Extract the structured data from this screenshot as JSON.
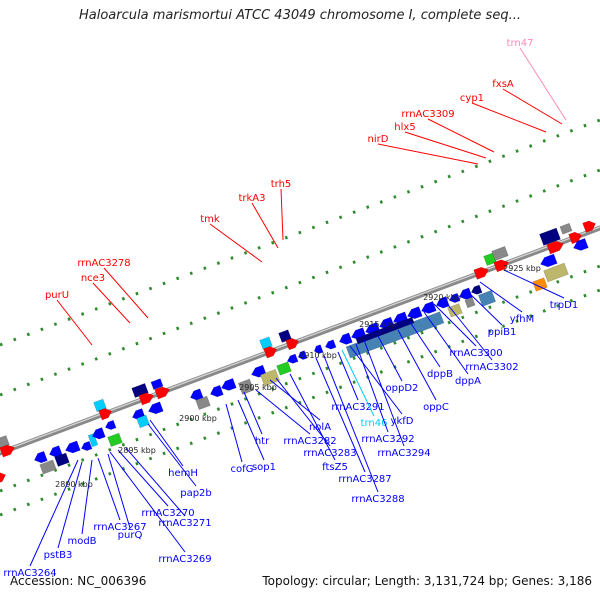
{
  "title": "Haloarcula marismortui ATCC 43049 chromosome I, complete seq...",
  "footer": {
    "accession": "Accession: NC_006396",
    "summary": "Topology: circular; Length: 3,131,724 bp; Genes: 3,186"
  },
  "colors": {
    "red": "#ff0000",
    "blue": "#0000ff",
    "navy": "#000080",
    "cyan": "#00ccff",
    "pink": "#ff88bb",
    "green": "#22cc22",
    "steelblue": "#4682b4",
    "khaki": "#bdb76b",
    "gray": "#888888",
    "orange": "#ff8c00"
  },
  "ticks": [
    "2890 kbp",
    "2895 kbp",
    "2900 kbp",
    "2905 kbp",
    "2910 kbp",
    "2915 kbp",
    "2920 kbp",
    "2925 kbp"
  ],
  "top_labels": [
    {
      "text": "purU",
      "color": "red"
    },
    {
      "text": "nce3",
      "color": "red"
    },
    {
      "text": "rrnAC3278",
      "color": "red"
    },
    {
      "text": "tmk",
      "color": "red"
    },
    {
      "text": "trkA3",
      "color": "red"
    },
    {
      "text": "trh5",
      "color": "red"
    },
    {
      "text": "nirD",
      "color": "red"
    },
    {
      "text": "hlx5",
      "color": "red"
    },
    {
      "text": "rrnAC3309",
      "color": "red"
    },
    {
      "text": "cyp1",
      "color": "red"
    },
    {
      "text": "fxsA",
      "color": "red"
    },
    {
      "text": "trn47",
      "color": "pink"
    }
  ],
  "bottom_labels": [
    {
      "text": "rrnAC3264",
      "color": "blue"
    },
    {
      "text": "pstB3",
      "color": "blue"
    },
    {
      "text": "modB",
      "color": "blue"
    },
    {
      "text": "rrnAC3267",
      "color": "blue"
    },
    {
      "text": "purQ",
      "color": "blue"
    },
    {
      "text": "rrnAC3269",
      "color": "blue"
    },
    {
      "text": "rrnAC3270",
      "color": "blue"
    },
    {
      "text": "rrnAC3271",
      "color": "blue"
    },
    {
      "text": "pap2b",
      "color": "blue"
    },
    {
      "text": "hemH",
      "color": "blue"
    },
    {
      "text": "cofG",
      "color": "blue"
    },
    {
      "text": "sop1",
      "color": "blue"
    },
    {
      "text": "htr",
      "color": "blue"
    },
    {
      "text": "rrnAC3282",
      "color": "blue"
    },
    {
      "text": "nolA",
      "color": "blue"
    },
    {
      "text": "rrnAC3283",
      "color": "blue"
    },
    {
      "text": "ftsZ5",
      "color": "blue"
    },
    {
      "text": "rrnAC3287",
      "color": "blue"
    },
    {
      "text": "rrnAC3288",
      "color": "blue"
    },
    {
      "text": "rrnAC3291",
      "color": "blue"
    },
    {
      "text": "trn46",
      "color": "cyan"
    },
    {
      "text": "ykfD",
      "color": "blue"
    },
    {
      "text": "rrnAC3292",
      "color": "blue"
    },
    {
      "text": "rrnAC3294",
      "color": "blue"
    },
    {
      "text": "oppD2",
      "color": "blue"
    },
    {
      "text": "oppC",
      "color": "blue"
    },
    {
      "text": "dppB",
      "color": "blue"
    },
    {
      "text": "dppA",
      "color": "blue"
    },
    {
      "text": "rrnAC3300",
      "color": "blue"
    },
    {
      "text": "rrnAC3302",
      "color": "blue"
    },
    {
      "text": "ppiB1",
      "color": "blue"
    },
    {
      "text": "yfhM",
      "color": "blue"
    },
    {
      "text": "trpD1",
      "color": "blue"
    }
  ]
}
